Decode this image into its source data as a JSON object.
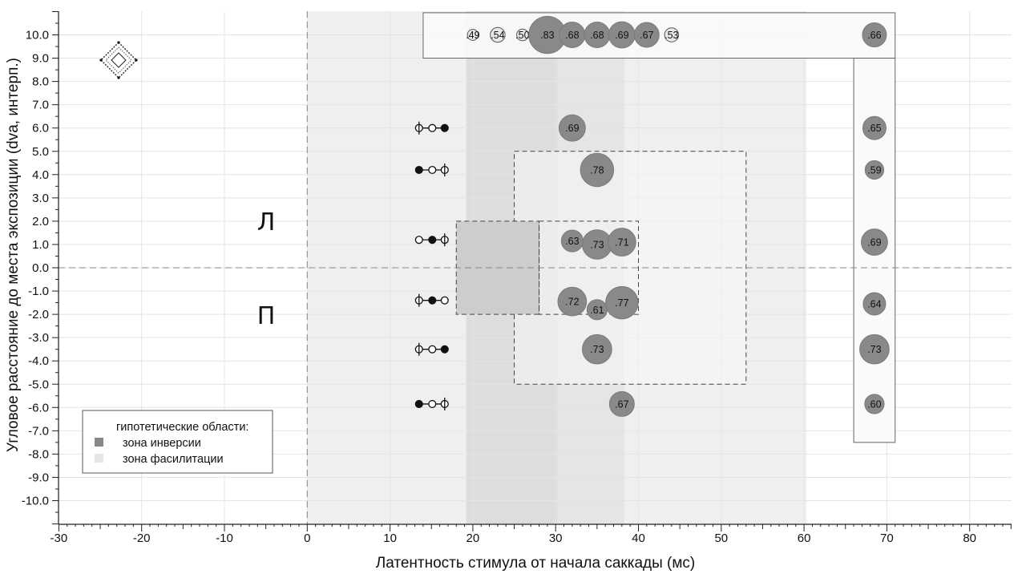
{
  "chart_data": {
    "type": "scatter",
    "xlabel": "Латентность стимула от начала саккады (мс)",
    "ylabel": "Угловое расстояние до места экспозиции (dva, интерп.)",
    "xlim": [
      -30,
      85
    ],
    "ylim": [
      -11,
      11
    ],
    "x_ticks": [
      -30,
      -20,
      -10,
      0,
      10,
      20,
      30,
      40,
      50,
      60,
      70,
      80
    ],
    "x_tick_labels": [
      "-30",
      "-20",
      "-10",
      "0",
      "10",
      "20",
      "30",
      "40",
      "50",
      "60",
      "70",
      "80"
    ],
    "y_ticks": [
      10,
      9,
      8,
      7,
      6,
      5,
      4,
      3,
      2,
      1,
      0,
      -1,
      -2,
      -3,
      -4,
      -5,
      -6,
      -7,
      -8,
      -9,
      -10
    ],
    "y_tick_labels": [
      "10.0",
      "9.0",
      "8.0",
      "7.0",
      "6.0",
      "5.0",
      "4.0",
      "3.0",
      "2.0",
      "1.0",
      "0.0",
      "-1.0",
      "-2.0",
      "-3.0",
      "-4.0",
      "-5.0",
      "-6.0",
      "-7.0",
      "-8.0",
      "-9.0",
      "-10.0"
    ],
    "grid": true,
    "reference_lines": {
      "x": 0,
      "y": 0
    },
    "shaded_bands": [
      {
        "x_from": 0,
        "x_to": 60.3,
        "level": 1
      },
      {
        "x_from": 19.2,
        "x_to": 38.3,
        "level": 2
      },
      {
        "x_from": 19.2,
        "x_to": 30.2,
        "level": 3
      }
    ],
    "hypothesis_regions": [
      {
        "zone": "inversion",
        "x_from": 18,
        "x_to": 28,
        "y_from": -2,
        "y_to": 2,
        "filled": true
      },
      {
        "zone": "inversion",
        "x_from": 28,
        "x_to": 40,
        "y_from": -2,
        "y_to": 2,
        "filled": false
      },
      {
        "zone": "facilitation",
        "x_from": 25,
        "x_to": 53,
        "y_from": -5,
        "y_to": 5,
        "filled": false
      }
    ],
    "frames": [
      {
        "x_from": 14,
        "x_to": 71,
        "y_from": 9,
        "y_to": 10.95
      },
      {
        "x_from": 66,
        "x_to": 71,
        "y_from": -7.5,
        "y_to": 9
      }
    ],
    "series": [
      {
        "name": "bubbles",
        "points": [
          {
            "x": 20,
            "y": 10,
            "value": 0.49,
            "label": ".49",
            "style": "light"
          },
          {
            "x": 23,
            "y": 10,
            "value": 0.54,
            "label": ".54",
            "style": "light"
          },
          {
            "x": 26,
            "y": 10,
            "value": 0.5,
            "label": ".50",
            "style": "light"
          },
          {
            "x": 29,
            "y": 10,
            "value": 0.83,
            "label": ".83",
            "style": "dark"
          },
          {
            "x": 32,
            "y": 10,
            "value": 0.68,
            "label": ".68",
            "style": "dark"
          },
          {
            "x": 35,
            "y": 10,
            "value": 0.68,
            "label": ".68",
            "style": "dark"
          },
          {
            "x": 38,
            "y": 10,
            "value": 0.69,
            "label": ".69",
            "style": "dark"
          },
          {
            "x": 41,
            "y": 10,
            "value": 0.67,
            "label": ".67",
            "style": "dark"
          },
          {
            "x": 44,
            "y": 10,
            "value": 0.53,
            "label": ".53",
            "style": "light"
          },
          {
            "x": 68.5,
            "y": 10,
            "value": 0.66,
            "label": ".66",
            "style": "dark"
          },
          {
            "x": 32,
            "y": 6,
            "value": 0.69,
            "label": ".69",
            "style": "dark"
          },
          {
            "x": 68.5,
            "y": 6,
            "value": 0.65,
            "label": ".65",
            "style": "dark"
          },
          {
            "x": 35,
            "y": 4.2,
            "value": 0.78,
            "label": ".78",
            "style": "dark"
          },
          {
            "x": 68.5,
            "y": 4.2,
            "value": 0.59,
            "label": ".59",
            "style": "dark"
          },
          {
            "x": 32,
            "y": 1.15,
            "value": 0.63,
            "label": ".63",
            "style": "dark"
          },
          {
            "x": 35,
            "y": 1.0,
            "value": 0.73,
            "label": ".73",
            "style": "dark"
          },
          {
            "x": 38,
            "y": 1.1,
            "value": 0.71,
            "label": ".71",
            "style": "dark"
          },
          {
            "x": 68.5,
            "y": 1.1,
            "value": 0.69,
            "label": ".69",
            "style": "dark"
          },
          {
            "x": 32,
            "y": -1.45,
            "value": 0.72,
            "label": ".72",
            "style": "dark"
          },
          {
            "x": 35,
            "y": -1.8,
            "value": 0.61,
            "label": ".61",
            "style": "dark"
          },
          {
            "x": 38,
            "y": -1.5,
            "value": 0.77,
            "label": ".77",
            "style": "dark"
          },
          {
            "x": 68.5,
            "y": -1.55,
            "value": 0.64,
            "label": ".64",
            "style": "dark"
          },
          {
            "x": 35,
            "y": -3.5,
            "value": 0.73,
            "label": ".73",
            "style": "dark"
          },
          {
            "x": 68.5,
            "y": -3.5,
            "value": 0.73,
            "label": ".73",
            "style": "dark"
          },
          {
            "x": 38,
            "y": -5.85,
            "value": 0.67,
            "label": ".67",
            "style": "dark"
          },
          {
            "x": 68.5,
            "y": -5.85,
            "value": 0.6,
            "label": ".60",
            "style": "dark"
          }
        ]
      }
    ],
    "stimulus_glyphs": [
      {
        "y": 6,
        "filled_index": 2
      },
      {
        "y": 4.2,
        "filled_index": 0
      },
      {
        "y": 1.2,
        "filled_index": 1
      },
      {
        "y": -1.4,
        "filled_index": 1
      },
      {
        "y": -3.5,
        "filled_index": 2
      },
      {
        "y": -5.85,
        "filled_index": 0
      }
    ],
    "side_labels": {
      "left": "Л",
      "right": "П"
    },
    "legend": {
      "title": "гипотетические области:",
      "items": [
        {
          "label": "зона инверсии",
          "color": "#888888"
        },
        {
          "label": "зона фасилитации",
          "color": "#e6e6e6"
        }
      ],
      "placement": "bottom-left"
    },
    "colors": {
      "dark_bubble": "#898989",
      "light_bubble": "#e8e8e8",
      "band_1": "#efefef",
      "band_2": "#e5e5e5",
      "band_3": "#dddddd",
      "inversion_fill": "#cdcdcd"
    }
  }
}
